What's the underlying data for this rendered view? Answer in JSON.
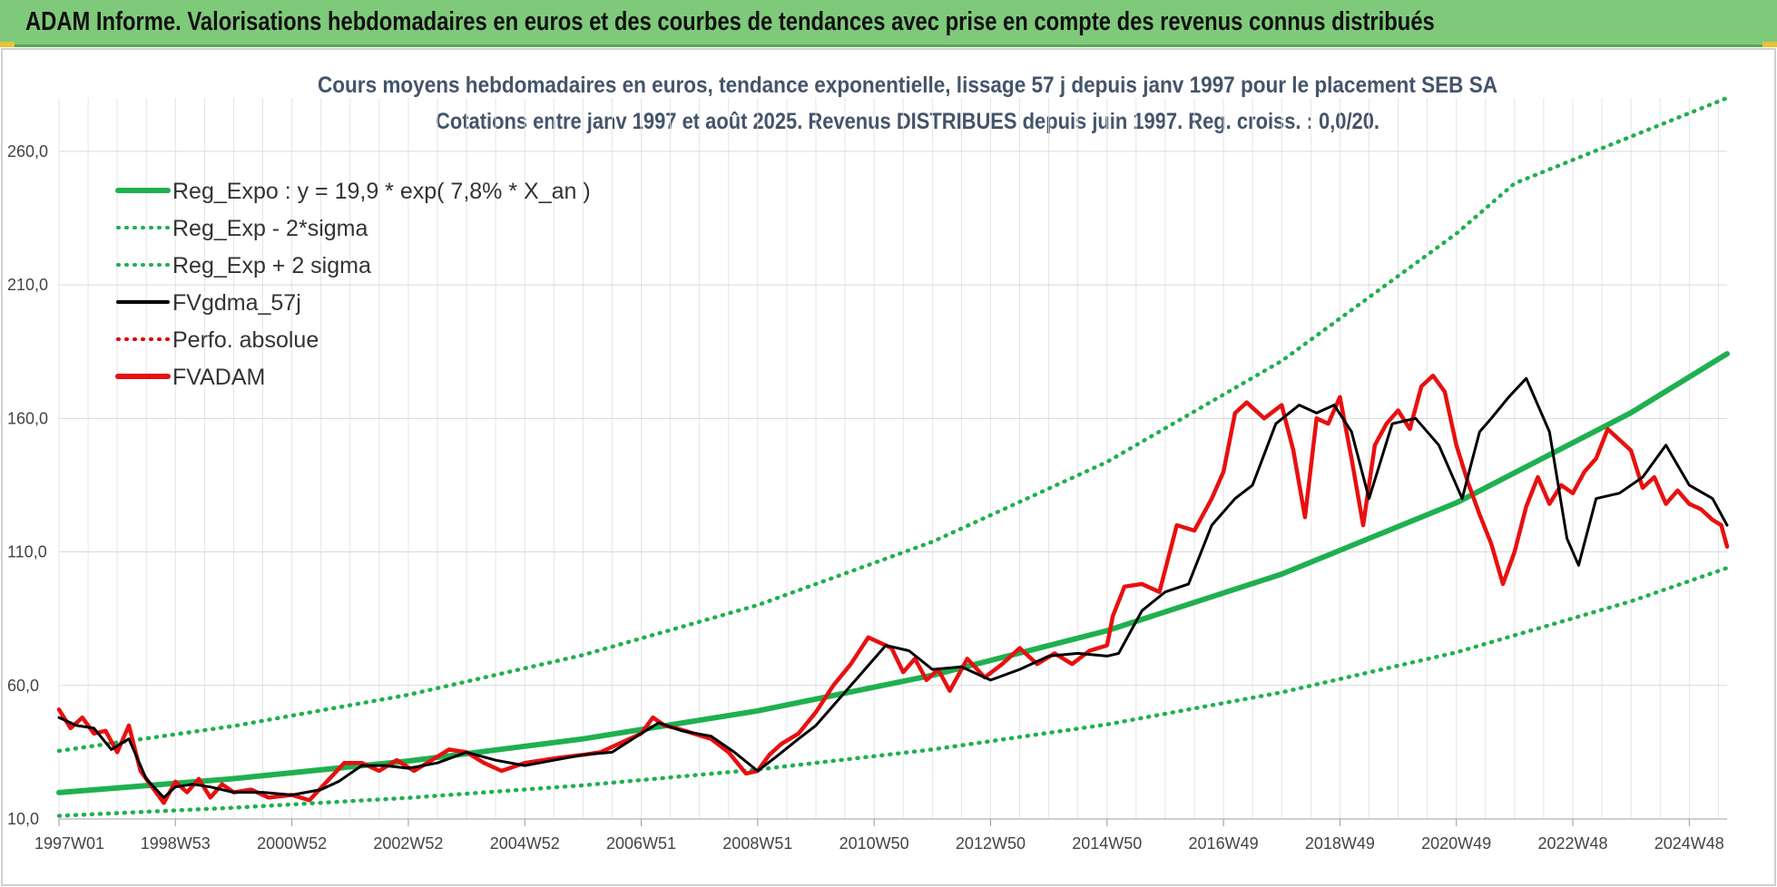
{
  "header": {
    "title": "ADAM Informe. Valorisations hebdomadaires en euros et des courbes de tendances avec prise en compte des revenus connus distribués"
  },
  "chart_data": {
    "type": "line",
    "title": "Cours moyens hebdomadaires en euros, tendance exponentielle, lissage 57 j depuis janv 1997 pour le placement SEB SA",
    "subtitle": "Cotations entre janv 1997 et août 2025. Revenus DISTRIBUES depuis juin 1997. Reg. croiss. : 0,0/20.",
    "xlabel": "",
    "ylabel": "",
    "ylim": [
      10,
      280
    ],
    "xlim": [
      1997.0,
      2025.65
    ],
    "grid": true,
    "legend_position": "top-left",
    "y_ticks": [
      "10,0",
      "60,0",
      "110,0",
      "160,0",
      "210,0",
      "260,0"
    ],
    "x_ticks": [
      {
        "label": "1997W01",
        "x": 1997.0
      },
      {
        "label": "1998W53",
        "x": 1999.0
      },
      {
        "label": "2000W52",
        "x": 2001.0
      },
      {
        "label": "2002W52",
        "x": 2003.0
      },
      {
        "label": "2004W52",
        "x": 2005.0
      },
      {
        "label": "2006W51",
        "x": 2007.0
      },
      {
        "label": "2008W51",
        "x": 2009.0
      },
      {
        "label": "2010W50",
        "x": 2011.0
      },
      {
        "label": "2012W50",
        "x": 2013.0
      },
      {
        "label": "2014W50",
        "x": 2015.0
      },
      {
        "label": "2016W49",
        "x": 2017.0
      },
      {
        "label": "2018W49",
        "x": 2019.0
      },
      {
        "label": "2020W49",
        "x": 2021.0
      },
      {
        "label": "2022W48",
        "x": 2023.0
      },
      {
        "label": "2024W48",
        "x": 2025.0
      }
    ],
    "series": [
      {
        "name": "Reg_Expo : y = 19,9 * exp( 7,8% *  X_an )",
        "color": "#1fb050",
        "style": "solid",
        "x": [
          1997.0,
          2000.0,
          2003.0,
          2006.0,
          2009.0,
          2012.0,
          2015.0,
          2018.0,
          2021.0,
          2024.0,
          2025.65
        ],
        "y": [
          19.9,
          25.1,
          31.7,
          40.0,
          50.5,
          63.8,
          80.5,
          101.7,
          128.4,
          162.1,
          184.2
        ]
      },
      {
        "name": "Reg_Exp - 2*sigma",
        "color": "#1fb050",
        "style": "dotted",
        "x": [
          1997.0,
          2000.0,
          2003.0,
          2006.0,
          2009.0,
          2012.0,
          2015.0,
          2018.0,
          2021.0,
          2024.0,
          2025.65
        ],
        "y": [
          11.2,
          14.2,
          17.9,
          22.6,
          28.5,
          36.0,
          45.4,
          57.4,
          72.4,
          91.5,
          104.0
        ]
      },
      {
        "name": "Reg_Exp + 2 sigma",
        "color": "#1fb050",
        "style": "dotted",
        "x": [
          1997.0,
          2000.0,
          2003.0,
          2006.0,
          2009.0,
          2012.0,
          2015.0,
          2018.0,
          2021.0,
          2022.0,
          2025.65
        ],
        "y": [
          35.5,
          44.8,
          56.5,
          71.4,
          90.1,
          113.8,
          143.7,
          181.5,
          229.2,
          248.0,
          280.0
        ]
      },
      {
        "name": "FVgdma_57j",
        "color": "#000000",
        "style": "solid",
        "x": [
          1997.0,
          1997.3,
          1997.6,
          1997.9,
          1998.2,
          1998.5,
          1998.8,
          1999.0,
          1999.3,
          1999.6,
          2000.0,
          2000.5,
          2001.0,
          2001.5,
          2001.8,
          2002.2,
          2002.6,
          2003.0,
          2003.5,
          2004.0,
          2004.5,
          2005.0,
          2005.5,
          2006.0,
          2006.5,
          2007.0,
          2007.3,
          2007.7,
          2008.2,
          2008.6,
          2009.0,
          2009.3,
          2009.7,
          2010.0,
          2010.4,
          2010.8,
          2011.2,
          2011.6,
          2012.0,
          2012.5,
          2013.0,
          2013.5,
          2014.0,
          2014.5,
          2015.0,
          2015.2,
          2015.6,
          2016.0,
          2016.4,
          2016.8,
          2017.2,
          2017.5,
          2017.9,
          2018.3,
          2018.6,
          2018.9,
          2019.2,
          2019.5,
          2019.9,
          2020.3,
          2020.7,
          2021.1,
          2021.4,
          2021.6,
          2021.9,
          2022.2,
          2022.6,
          2022.9,
          2023.1,
          2023.4,
          2023.8,
          2024.2,
          2024.6,
          2025.0,
          2025.4,
          2025.65
        ],
        "y": [
          48,
          45,
          44,
          36,
          40,
          25,
          18,
          22,
          23,
          22,
          20,
          20,
          19,
          21,
          24,
          30,
          30,
          29,
          31,
          35,
          32,
          30,
          32,
          34,
          35,
          42,
          46,
          43,
          41,
          35,
          28,
          33,
          40,
          45,
          55,
          65,
          75,
          73,
          66,
          67,
          62,
          66,
          71,
          72,
          71,
          72,
          88,
          95,
          98,
          120,
          130,
          135,
          158,
          165,
          162,
          165,
          155,
          130,
          158,
          160,
          150,
          130,
          155,
          160,
          168,
          175,
          155,
          115,
          105,
          130,
          132,
          138,
          150,
          135,
          130,
          120
        ]
      },
      {
        "name": "Perfo. absolue",
        "color": "#e00000",
        "style": "dotted",
        "x": [],
        "y": []
      },
      {
        "name": "FVADAM",
        "color": "#e81010",
        "style": "solid",
        "x": [
          1997.0,
          1997.2,
          1997.4,
          1997.6,
          1997.8,
          1998.0,
          1998.2,
          1998.4,
          1998.6,
          1998.8,
          1999.0,
          1999.2,
          1999.4,
          1999.6,
          1999.8,
          2000.0,
          2000.3,
          2000.6,
          2001.0,
          2001.3,
          2001.6,
          2001.9,
          2002.2,
          2002.5,
          2002.8,
          2003.1,
          2003.4,
          2003.7,
          2004.0,
          2004.3,
          2004.6,
          2005.0,
          2005.3,
          2005.6,
          2006.0,
          2006.3,
          2006.6,
          2007.0,
          2007.2,
          2007.4,
          2007.6,
          2007.9,
          2008.2,
          2008.5,
          2008.8,
          2009.0,
          2009.2,
          2009.4,
          2009.7,
          2010.0,
          2010.3,
          2010.6,
          2010.9,
          2011.1,
          2011.3,
          2011.5,
          2011.7,
          2011.9,
          2012.1,
          2012.3,
          2012.6,
          2012.9,
          2013.2,
          2013.5,
          2013.8,
          2014.1,
          2014.4,
          2014.7,
          2015.0,
          2015.1,
          2015.3,
          2015.6,
          2015.9,
          2016.2,
          2016.5,
          2016.8,
          2017.0,
          2017.2,
          2017.4,
          2017.7,
          2018.0,
          2018.2,
          2018.4,
          2018.6,
          2018.8,
          2019.0,
          2019.2,
          2019.4,
          2019.6,
          2019.8,
          2020.0,
          2020.2,
          2020.4,
          2020.6,
          2020.8,
          2021.0,
          2021.2,
          2021.4,
          2021.6,
          2021.8,
          2022.0,
          2022.2,
          2022.4,
          2022.6,
          2022.8,
          2023.0,
          2023.2,
          2023.4,
          2023.6,
          2023.8,
          2024.0,
          2024.2,
          2024.4,
          2024.6,
          2024.8,
          2025.0,
          2025.2,
          2025.4,
          2025.55,
          2025.65
        ],
        "y": [
          51,
          44,
          48,
          42,
          43,
          35,
          45,
          28,
          22,
          16,
          24,
          20,
          25,
          18,
          23,
          20,
          21,
          18,
          19,
          17,
          24,
          31,
          31,
          28,
          32,
          28,
          32,
          36,
          35,
          31,
          28,
          31,
          32,
          33,
          34,
          35,
          38,
          42,
          48,
          45,
          44,
          42,
          40,
          35,
          27,
          28,
          34,
          38,
          42,
          50,
          60,
          68,
          78,
          76,
          74,
          65,
          70,
          62,
          66,
          58,
          70,
          63,
          68,
          74,
          68,
          72,
          68,
          73,
          75,
          86,
          97,
          98,
          95,
          120,
          118,
          130,
          140,
          162,
          166,
          160,
          165,
          148,
          123,
          160,
          158,
          168,
          145,
          120,
          150,
          158,
          163,
          156,
          172,
          176,
          170,
          150,
          136,
          124,
          113,
          98,
          110,
          127,
          138,
          128,
          135,
          132,
          140,
          145,
          156,
          152,
          148,
          134,
          138,
          128,
          133,
          128,
          126,
          122,
          120,
          112
        ]
      }
    ]
  }
}
